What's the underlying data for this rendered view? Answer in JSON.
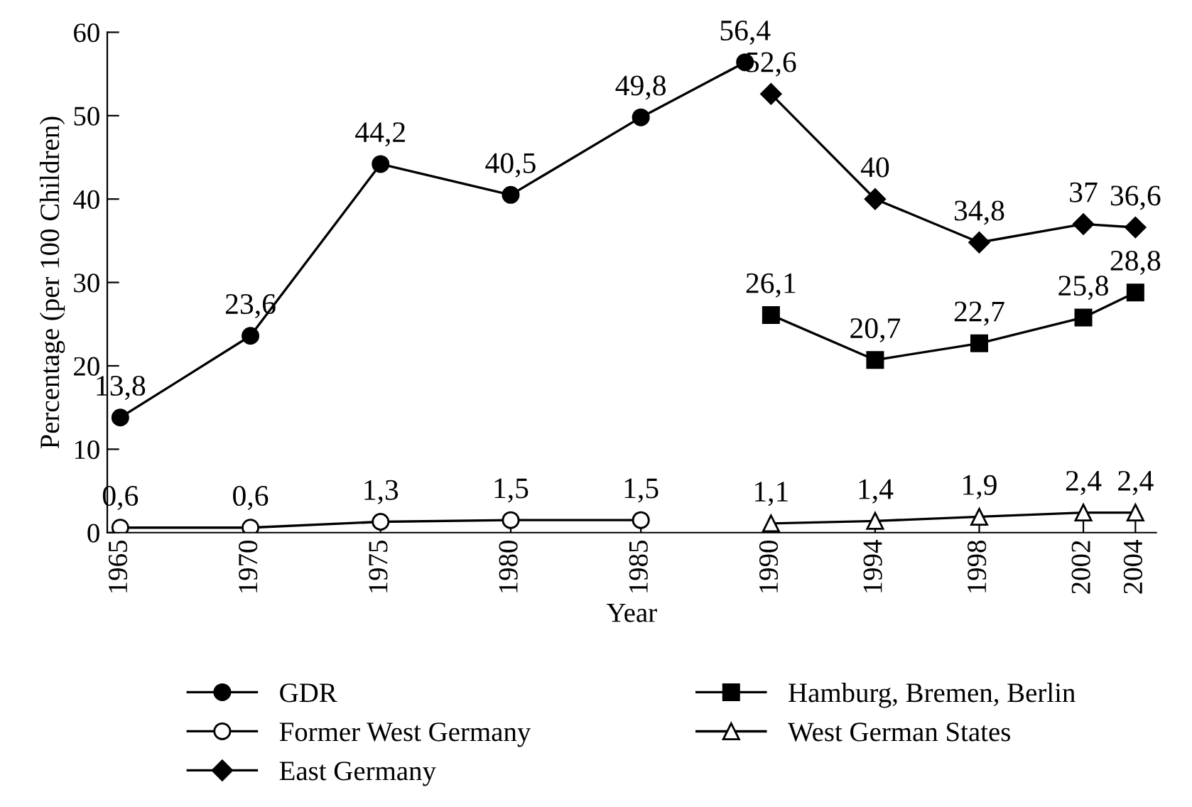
{
  "chart_data": {
    "type": "line",
    "xlabel": "Year",
    "ylabel": "Percentage (per 100 Children)",
    "xlim": [
      1964.5,
      2004.8
    ],
    "xticks": [
      1965,
      1970,
      1975,
      1980,
      1985,
      1990,
      1994,
      1998,
      2002,
      2004
    ],
    "ylim": [
      0,
      60
    ],
    "yticks": [
      0,
      10,
      20,
      30,
      40,
      50,
      60
    ],
    "grid": false,
    "legend": "bottom",
    "series": [
      {
        "name": "GDR",
        "color": "#000000",
        "marker": "circle",
        "x": [
          1965,
          1970,
          1975,
          1980,
          1985,
          1989
        ],
        "values": [
          13.8,
          23.6,
          44.2,
          40.5,
          49.8,
          56.4
        ],
        "value_labels": [
          "13,8",
          "23,6",
          "44,2",
          "40,5",
          "49,8",
          "56,4"
        ]
      },
      {
        "name": "Former West Germany",
        "color": "#000000",
        "marker": "circle_open",
        "x": [
          1965,
          1970,
          1975,
          1980,
          1985
        ],
        "values": [
          0.6,
          0.6,
          1.3,
          1.5,
          1.5
        ],
        "value_labels": [
          "0,6",
          "0,6",
          "1,3",
          "1,5",
          "1,5"
        ]
      },
      {
        "name": "East Germany",
        "color": "#000000",
        "marker": "diamond",
        "x": [
          1990,
          1994,
          1998,
          2002,
          2004
        ],
        "values": [
          52.6,
          40,
          34.8,
          37,
          36.6
        ],
        "value_labels": [
          "52,6",
          "40",
          "34,8",
          "37",
          "36,6"
        ]
      },
      {
        "name": "Hamburg, Bremen, Berlin",
        "color": "#000000",
        "marker": "square",
        "x": [
          1990,
          1994,
          1998,
          2002,
          2004
        ],
        "values": [
          26.1,
          20.7,
          22.7,
          25.8,
          28.8
        ],
        "value_labels": [
          "26,1",
          "20,7",
          "22,7",
          "25,8",
          "28,8"
        ]
      },
      {
        "name": "West German States",
        "color": "#000000",
        "marker": "triangle_open",
        "x": [
          1990,
          1994,
          1998,
          2002,
          2004
        ],
        "values": [
          1.1,
          1.4,
          1.9,
          2.4,
          2.4
        ],
        "value_labels": [
          "1,1",
          "1,4",
          "1,9",
          "2,4",
          "2,4"
        ]
      }
    ]
  }
}
